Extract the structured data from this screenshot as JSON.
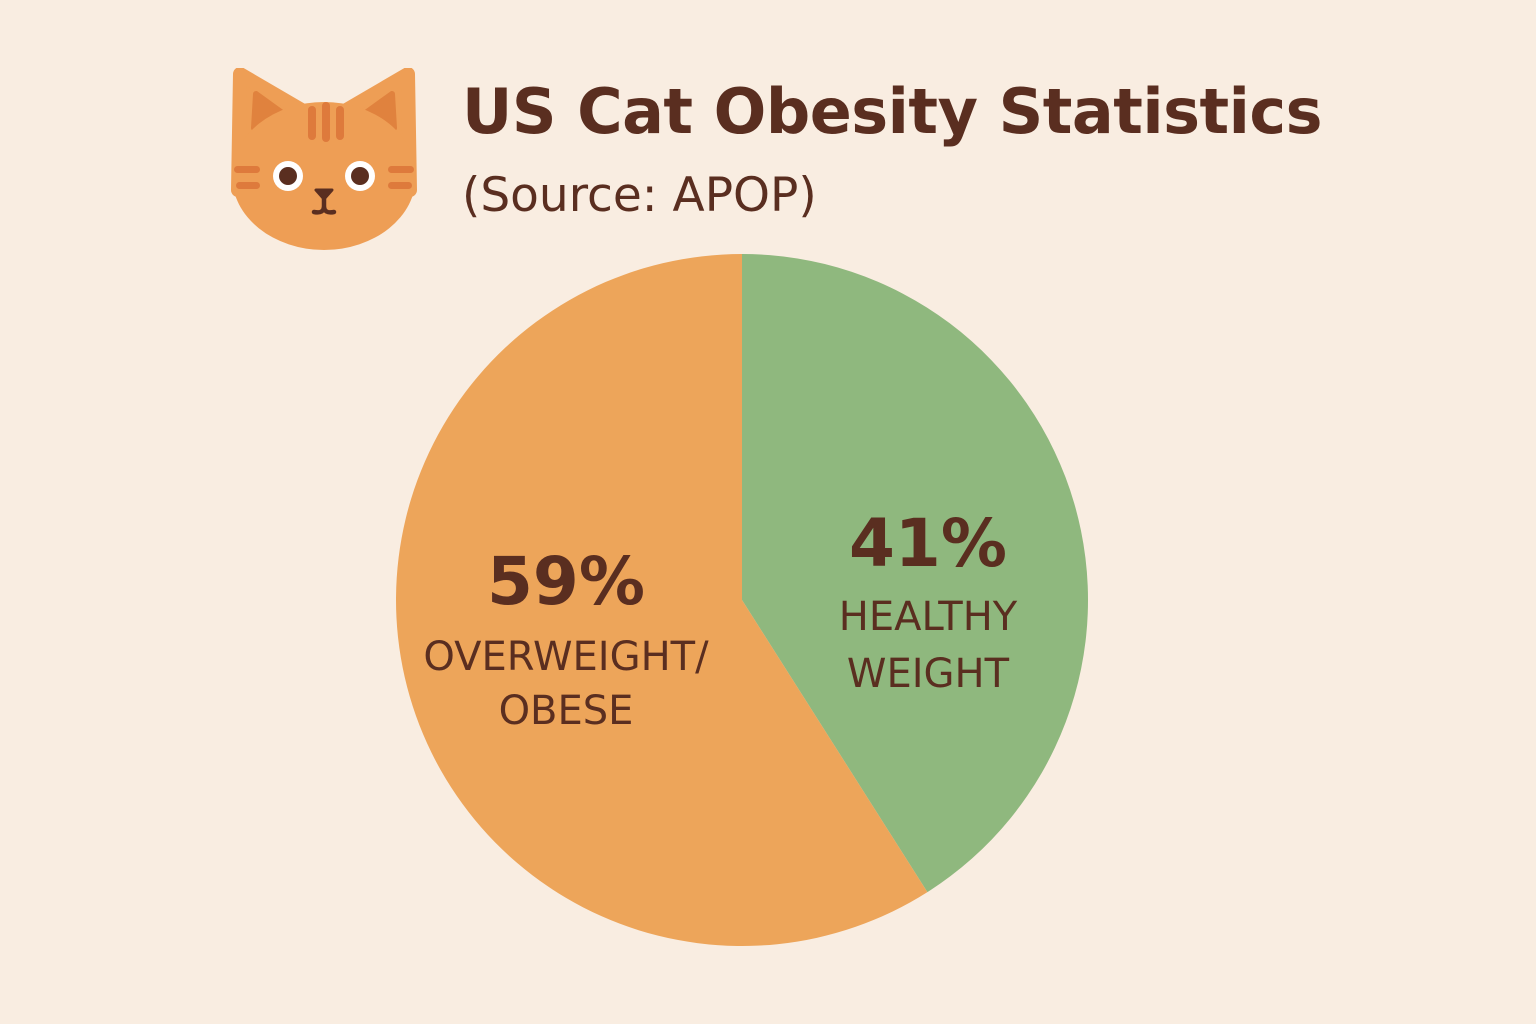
{
  "header": {
    "title": "US Cat Obesity Statistics",
    "subtitle": "(Source: APOP)",
    "icon": "cat-face-icon"
  },
  "colors": {
    "background": "#F9EDE1",
    "text": "#5A2E20",
    "overweight": "#EDA55A",
    "healthy": "#8FB87E",
    "cat_fur": "#EE9E55",
    "cat_stripes": "#DE7A3C",
    "cat_inner_ear": "#E0823E",
    "cat_features": "#5A2E20"
  },
  "chart_data": {
    "type": "pie",
    "title": "US Cat Obesity Statistics",
    "subtitle": "(Source: APOP)",
    "slices": [
      {
        "percent_label": "41%",
        "label_lines": [
          "HEALTHY",
          "WEIGHT"
        ],
        "value": 41,
        "color": "#8FB87E"
      },
      {
        "percent_label": "59%",
        "label_lines": [
          "OVERWEIGHT/",
          "OBESE"
        ],
        "value": 59,
        "color": "#EDA55A"
      }
    ],
    "start_angle": "12 o'clock",
    "direction": "clockwise",
    "legend": "none (labels inside slices)"
  }
}
